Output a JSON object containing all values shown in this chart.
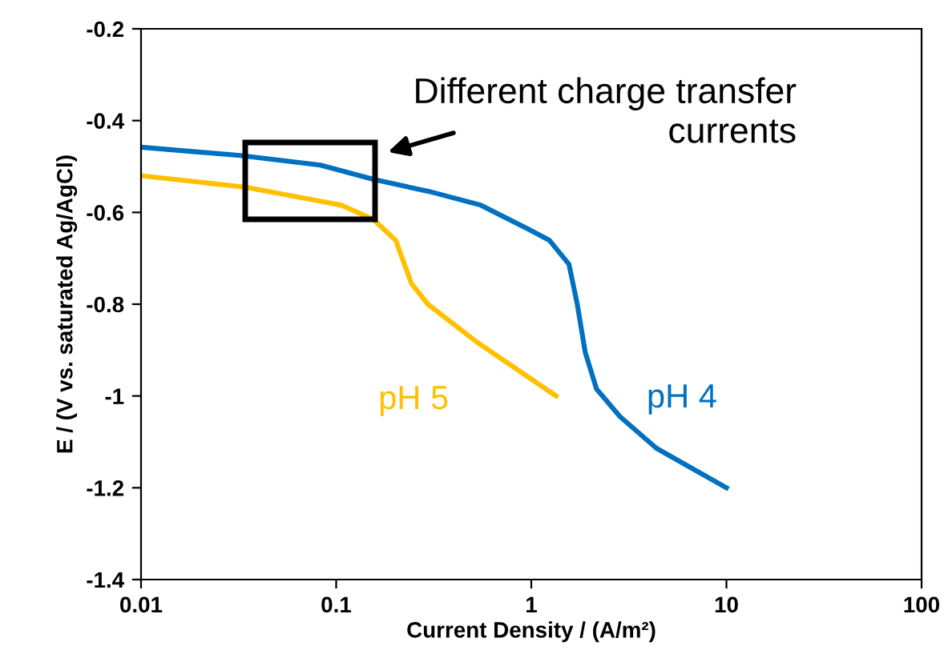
{
  "chart_data": {
    "type": "line",
    "xlabel": "Current Density / (A/m²)",
    "ylabel": "E / (V vs. saturated Ag/AgCl)",
    "log": "x",
    "grid": false,
    "legend": false,
    "marker": "none",
    "line_style": "solid",
    "xlim": [
      0.01,
      100
    ],
    "xticks": [
      {
        "value": 0.01,
        "label": "0.01"
      },
      {
        "value": 0.1,
        "label": "0.1"
      },
      {
        "value": 1,
        "label": "1"
      },
      {
        "value": 10,
        "label": "10"
      },
      {
        "value": 100,
        "label": "100"
      }
    ],
    "ylim": [
      -1.4,
      -0.2
    ],
    "yticks": [
      {
        "value": -1.4,
        "label": "-1.4"
      },
      {
        "value": -1.2,
        "label": "-1.2"
      },
      {
        "value": -1.0,
        "label": "-1"
      },
      {
        "value": -0.8,
        "label": "-0.8"
      },
      {
        "value": -0.6,
        "label": "-0.6"
      },
      {
        "value": -0.4,
        "label": "-0.4"
      },
      {
        "value": -0.2,
        "label": "-0.2"
      }
    ],
    "series": [
      {
        "name": "pH 4",
        "color": "#0070c0",
        "x": [
          0.01,
          0.0323,
          0.083,
          0.155,
          0.31,
          0.55,
          0.97,
          1.24,
          1.56,
          1.72,
          1.89,
          2.16,
          2.85,
          4.38,
          10
        ],
        "values": [
          -0.458,
          -0.476,
          -0.497,
          -0.528,
          -0.556,
          -0.584,
          -0.637,
          -0.661,
          -0.713,
          -0.8,
          -0.905,
          -0.985,
          -1.045,
          -1.114,
          -1.2
        ]
      },
      {
        "name": "pH 5",
        "color": "#ffc000",
        "x": [
          0.01,
          0.0342,
          0.106,
          0.155,
          0.202,
          0.243,
          0.295,
          0.52,
          1.34
        ],
        "values": [
          -0.52,
          -0.545,
          -0.584,
          -0.615,
          -0.661,
          -0.755,
          -0.8,
          -0.881,
          -1.0
        ]
      }
    ],
    "annotations": [
      "Different charge transfer\ncurrents"
    ]
  }
}
